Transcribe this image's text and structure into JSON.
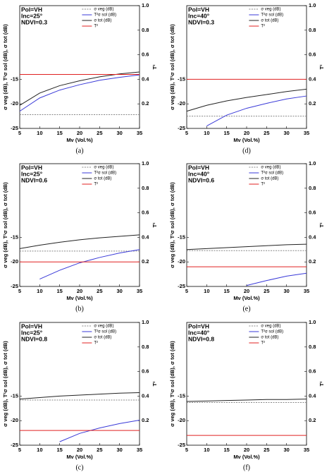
{
  "chart_data": [
    {
      "type": "line",
      "label": "(a)",
      "annotations": [
        "Pol=VH",
        "Inc=25°",
        "NDVI=0.3"
      ],
      "xlabel": "Mv (Vol.%)",
      "ylabel": "σ veg (dB), T²σ sol (dB), σ tot (dB)",
      "y2label": "T²",
      "x": [
        5,
        10,
        15,
        20,
        25,
        30,
        35
      ],
      "xlim": [
        5,
        35
      ],
      "xticks": [
        5,
        10,
        15,
        20,
        25,
        30,
        35
      ],
      "ylim": [
        -25,
        0
      ],
      "yticks": [
        -25,
        -20,
        -15
      ],
      "y2lim": [
        0,
        1
      ],
      "y2ticks": [
        0.2,
        0.4,
        0.6,
        {
          "value": 1,
          "label": "1.0"
        },
        0.8
      ],
      "legend": "upper right",
      "series": [
        {
          "name": "σ veg (dB)",
          "color": "#888888",
          "linestyle": "dashed",
          "values": [
            -22.2,
            -22.2,
            -22.2,
            -22.2,
            -22.2,
            -22.2,
            -22.2
          ]
        },
        {
          "name": "T²σ sol (dB)",
          "color": "#3a3ad8",
          "values": [
            -21.5,
            -18.8,
            -17.2,
            -16.1,
            -15.2,
            -14.6,
            -14.1
          ]
        },
        {
          "name": "σ tot (dB)",
          "color": "#222222",
          "values": [
            -20.3,
            -17.8,
            -16.3,
            -15.3,
            -14.5,
            -13.9,
            -13.5
          ]
        },
        {
          "name": "T²",
          "color": "#e02020",
          "axis": "y2",
          "values": [
            0.44,
            0.44,
            0.44,
            0.44,
            0.44,
            0.44,
            0.44
          ]
        }
      ]
    },
    {
      "type": "line",
      "label": "(d)",
      "annotations": [
        "Pol=VH",
        "Inc=40°",
        "NDVI=0.3"
      ],
      "xlabel": "Mv (Vol.%)",
      "ylabel": "σ veg (dB), T²σ sol (dB), σ tot (dB)",
      "y2label": "T²",
      "x": [
        5,
        10,
        15,
        20,
        25,
        30,
        35
      ],
      "xlim": [
        5,
        35
      ],
      "xticks": [
        5,
        10,
        15,
        20,
        25,
        30,
        35
      ],
      "ylim": [
        -25,
        0
      ],
      "yticks": [
        -25,
        -20,
        -15
      ],
      "y2lim": [
        0,
        1
      ],
      "y2ticks": [
        0.2,
        0.4,
        0.6,
        {
          "value": 1,
          "label": "1.0"
        },
        0.8
      ],
      "legend": "upper right",
      "series": [
        {
          "name": "σ veg (dB)",
          "color": "#888888",
          "linestyle": "dashed",
          "values": [
            -22.5,
            -22.5,
            -22.5,
            -22.5,
            -22.5,
            -22.5,
            -22.5
          ]
        },
        {
          "name": "T²σ sol (dB)",
          "color": "#3a3ad8",
          "values": [
            null,
            -24.5,
            -22.3,
            -20.9,
            -19.9,
            -19.0,
            -18.4
          ]
        },
        {
          "name": "σ tot (dB)",
          "color": "#222222",
          "values": [
            -21.5,
            -20.3,
            -19.4,
            -18.7,
            -18.1,
            -17.5,
            -17.0
          ]
        },
        {
          "name": "T²",
          "color": "#e02020",
          "axis": "y2",
          "values": [
            0.4,
            0.4,
            0.4,
            0.4,
            0.4,
            0.4,
            0.4
          ]
        }
      ]
    },
    {
      "type": "line",
      "label": "(b)",
      "annotations": [
        "Pol=VH",
        "Inc=25°",
        "NDVI=0.6"
      ],
      "xlabel": "Mv (Vol.%)",
      "ylabel": "σ veg (dB), T²σ sol (dB), σ tot (dB)",
      "y2label": "T²",
      "x": [
        5,
        10,
        15,
        20,
        25,
        30,
        35
      ],
      "xlim": [
        5,
        35
      ],
      "xticks": [
        5,
        10,
        15,
        20,
        25,
        30,
        35
      ],
      "ylim": [
        -25,
        0
      ],
      "yticks": [
        -25,
        -20,
        -15
      ],
      "y2lim": [
        0,
        1
      ],
      "y2ticks": [
        0.2,
        0.4,
        0.6,
        {
          "value": 1,
          "label": "1.0"
        },
        0.8
      ],
      "legend": "upper right",
      "series": [
        {
          "name": "σ veg (dB)",
          "color": "#888888",
          "linestyle": "dashed",
          "values": [
            -17.8,
            -17.8,
            -17.8,
            -17.8,
            -17.8,
            -17.8,
            -17.8
          ]
        },
        {
          "name": "T²σ sol (dB)",
          "color": "#3a3ad8",
          "values": [
            null,
            -23.5,
            -21.7,
            -20.2,
            -19.1,
            -18.2,
            -17.5
          ]
        },
        {
          "name": "σ tot (dB)",
          "color": "#222222",
          "values": [
            -17.3,
            -16.6,
            -16.0,
            -15.5,
            -15.1,
            -14.8,
            -14.5
          ]
        },
        {
          "name": "T²",
          "color": "#e02020",
          "axis": "y2",
          "values": [
            0.2,
            0.2,
            0.2,
            0.2,
            0.2,
            0.2,
            0.2
          ]
        }
      ]
    },
    {
      "type": "line",
      "label": "(e)",
      "annotations": [
        "Pol=VH",
        "Inc=40°",
        "NDVI=0.6"
      ],
      "xlabel": "Mv (Vol.%)",
      "ylabel": "σ veg (dB), T²σ sol (dB), σ tot (dB)",
      "y2label": "T²",
      "x": [
        5,
        10,
        15,
        20,
        25,
        30,
        35
      ],
      "xlim": [
        5,
        35
      ],
      "xticks": [
        5,
        10,
        15,
        20,
        25,
        30,
        35
      ],
      "ylim": [
        -25,
        0
      ],
      "yticks": [
        -25,
        -20,
        -15
      ],
      "y2lim": [
        0,
        1
      ],
      "y2ticks": [
        0.2,
        0.4,
        0.6,
        {
          "value": 1,
          "label": "1.0"
        },
        0.8
      ],
      "legend": "upper right",
      "series": [
        {
          "name": "σ veg (dB)",
          "color": "#888888",
          "linestyle": "dashed",
          "values": [
            -17.7,
            -17.7,
            -17.7,
            -17.7,
            -17.7,
            -17.7,
            -17.7
          ]
        },
        {
          "name": "T²σ sol (dB)",
          "color": "#3a3ad8",
          "values": [
            null,
            null,
            null,
            -24.8,
            -23.8,
            -22.9,
            -22.3
          ]
        },
        {
          "name": "σ tot (dB)",
          "color": "#222222",
          "values": [
            -17.5,
            -17.3,
            -17.1,
            -16.9,
            -16.7,
            -16.5,
            -16.4
          ]
        },
        {
          "name": "T²",
          "color": "#e02020",
          "axis": "y2",
          "values": [
            0.16,
            0.16,
            0.16,
            0.16,
            0.16,
            0.16,
            0.16
          ]
        }
      ]
    },
    {
      "type": "line",
      "label": "(c)",
      "annotations": [
        "Pol=VH",
        "Inc=25°",
        "NDVI=0.8"
      ],
      "xlabel": "Mv (Vol.%)",
      "ylabel": "σ veg (dB), T²σ sol (dB), σ tot (dB)",
      "y2label": "T²",
      "x": [
        5,
        10,
        15,
        20,
        25,
        30,
        35
      ],
      "xlim": [
        5,
        35
      ],
      "xticks": [
        5,
        10,
        15,
        20,
        25,
        30,
        35
      ],
      "ylim": [
        -25,
        0
      ],
      "yticks": [
        -25,
        -20,
        -15
      ],
      "y2lim": [
        0,
        1
      ],
      "y2ticks": [
        0.2,
        0.4,
        0.6,
        {
          "value": 1,
          "label": "1.0"
        },
        0.8
      ],
      "legend": "upper right",
      "series": [
        {
          "name": "σ veg (dB)",
          "color": "#888888",
          "linestyle": "dashed",
          "values": [
            -15.8,
            -15.8,
            -15.8,
            -15.8,
            -15.8,
            -15.8,
            -15.8
          ]
        },
        {
          "name": "T²σ sol (dB)",
          "color": "#3a3ad8",
          "values": [
            null,
            null,
            -24.3,
            -22.6,
            -21.5,
            -20.6,
            -19.9
          ]
        },
        {
          "name": "σ tot (dB)",
          "color": "#222222",
          "values": [
            -15.6,
            -15.3,
            -15.0,
            -14.8,
            -14.6,
            -14.4,
            -14.3
          ]
        },
        {
          "name": "T²",
          "color": "#e02020",
          "axis": "y2",
          "values": [
            0.12,
            0.12,
            0.12,
            0.12,
            0.12,
            0.12,
            0.12
          ]
        }
      ]
    },
    {
      "type": "line",
      "label": "(f)",
      "annotations": [
        "Pol=VH",
        "Inc=40°",
        "NDVI=0.8"
      ],
      "xlabel": "Mv (Vol.%)",
      "ylabel": "σ veg (dB), T²σ sol (dB), σ tot (dB)",
      "y2label": "T²",
      "x": [
        5,
        10,
        15,
        20,
        25,
        30,
        35
      ],
      "xlim": [
        5,
        35
      ],
      "xticks": [
        5,
        10,
        15,
        20,
        25,
        30,
        35
      ],
      "ylim": [
        -25,
        0
      ],
      "yticks": [
        -25,
        -20,
        -15
      ],
      "y2lim": [
        0,
        1
      ],
      "y2ticks": [
        0.2,
        0.4,
        0.6,
        {
          "value": 1,
          "label": "1.0"
        },
        0.8
      ],
      "legend": "upper right",
      "series": [
        {
          "name": "σ veg (dB)",
          "color": "#888888",
          "linestyle": "dashed",
          "values": [
            -16.3,
            -16.3,
            -16.3,
            -16.3,
            -16.3,
            -16.3,
            -16.3
          ]
        },
        {
          "name": "T²σ sol (dB)",
          "color": "#3a3ad8",
          "values": [
            null,
            null,
            null,
            null,
            null,
            null,
            null
          ]
        },
        {
          "name": "σ tot (dB)",
          "color": "#222222",
          "values": [
            -16.1,
            -16.0,
            -15.9,
            -15.8,
            -15.7,
            -15.7,
            -15.6
          ]
        },
        {
          "name": "T²",
          "color": "#e02020",
          "axis": "y2",
          "values": [
            0.08,
            0.08,
            0.08,
            0.08,
            0.08,
            0.08,
            0.08
          ]
        }
      ]
    }
  ]
}
